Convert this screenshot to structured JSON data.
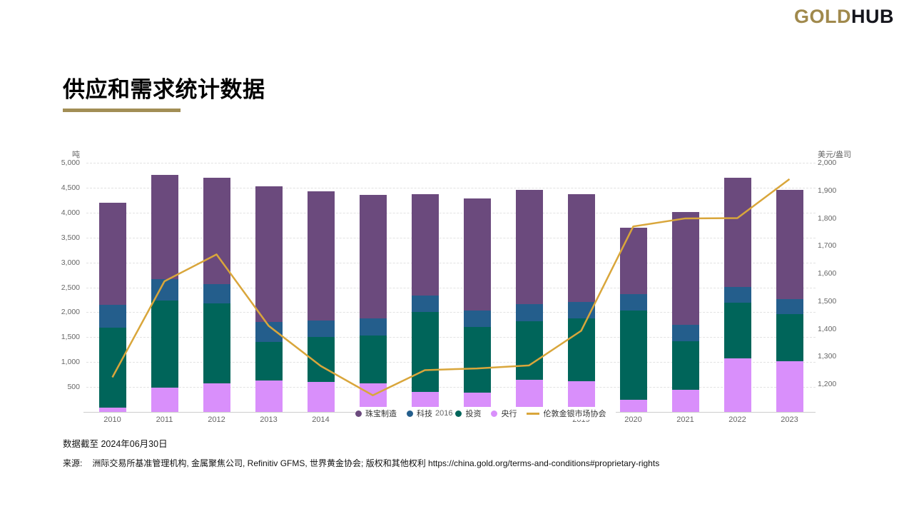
{
  "header": {
    "logo_gold": "GOLD",
    "logo_hub": "HUB"
  },
  "page_title": "供应和需求统计数据",
  "footer": {
    "data_as_of": "数据截至 2024年06月30日",
    "source_label": "来源:",
    "source_text": "洲际交易所基准管理机构, 金属聚焦公司, Refinitiv GFMS, 世界黄金协会; 版权和其他权利 https://china.gold.org/terms-and-conditions#proprietary-rights"
  },
  "colors": {
    "brand_gold": "#a0894c",
    "brand_dark": "#15161d",
    "title_underline": "#a28e55",
    "jewellery": "#6b4a7d",
    "technology": "#245e8c",
    "investment": "#00655a",
    "central_bank": "#d98ffb",
    "lbma_line": "#d9a63b",
    "axis_text": "#666666",
    "gridline": "#e2e2e2"
  },
  "chart_data": {
    "type": "bar",
    "subtype": "stacked-bars-with-line",
    "categories": [
      "2010",
      "2011",
      "2012",
      "2013",
      "2014",
      "2015",
      "2016",
      "2017",
      "2018",
      "2019",
      "2020",
      "2021",
      "2022",
      "2023"
    ],
    "series": [
      {
        "name": "珠宝制造",
        "color": "#6b4a7d",
        "values": [
          2050,
          2090,
          2140,
          2730,
          2580,
          2490,
          2030,
          2260,
          2290,
          2170,
          1340,
          2260,
          2190,
          2200
        ]
      },
      {
        "name": "科技",
        "color": "#245e8c",
        "values": [
          460,
          430,
          380,
          390,
          330,
          330,
          340,
          330,
          340,
          330,
          330,
          330,
          320,
          300
        ]
      },
      {
        "name": "投资",
        "color": "#00655a",
        "values": [
          1610,
          1750,
          1600,
          780,
          910,
          960,
          1600,
          1320,
          1180,
          1250,
          1780,
          970,
          1110,
          940
        ]
      },
      {
        "name": "央行",
        "color": "#d98ffb",
        "values": [
          80,
          480,
          580,
          630,
          600,
          580,
          400,
          380,
          640,
          620,
          250,
          450,
          1080,
          1020
        ]
      }
    ],
    "line_series": {
      "name": "伦敦金银市场协会",
      "color": "#d9a63b",
      "axis": "right",
      "values": [
        1225,
        1572,
        1669,
        1411,
        1266,
        1160,
        1251,
        1257,
        1268,
        1393,
        1770,
        1799,
        1800,
        1941
      ]
    },
    "left_axis": {
      "title": "吨",
      "min": 0,
      "max": 5000,
      "ticks": [
        500,
        1000,
        1500,
        2000,
        2500,
        3000,
        3500,
        4000,
        4500,
        5000
      ]
    },
    "right_axis": {
      "title": "美元/盎司",
      "min": 1100,
      "max": 2000,
      "ticks": [
        1200,
        1300,
        1400,
        1500,
        1600,
        1700,
        1800,
        1900,
        2000
      ]
    },
    "grid": "dashed-horizontal",
    "legend_position": "bottom-overlapping-x-axis",
    "visible_x_labels": [
      {
        "label": "2010",
        "index": 0
      },
      {
        "label": "2011",
        "index": 1
      },
      {
        "label": "2012",
        "index": 2
      },
      {
        "label": "2013",
        "index": 3
      },
      {
        "label": "2014",
        "index": 4
      },
      {
        "label": "2019",
        "index": 9
      },
      {
        "label": "2020",
        "index": 10
      },
      {
        "label": "2021",
        "index": 11
      },
      {
        "label": "2022",
        "index": 12
      },
      {
        "label": "2023",
        "index": 13
      }
    ],
    "legend_peek_label": {
      "text": "2016",
      "after_series_index": 1
    }
  }
}
